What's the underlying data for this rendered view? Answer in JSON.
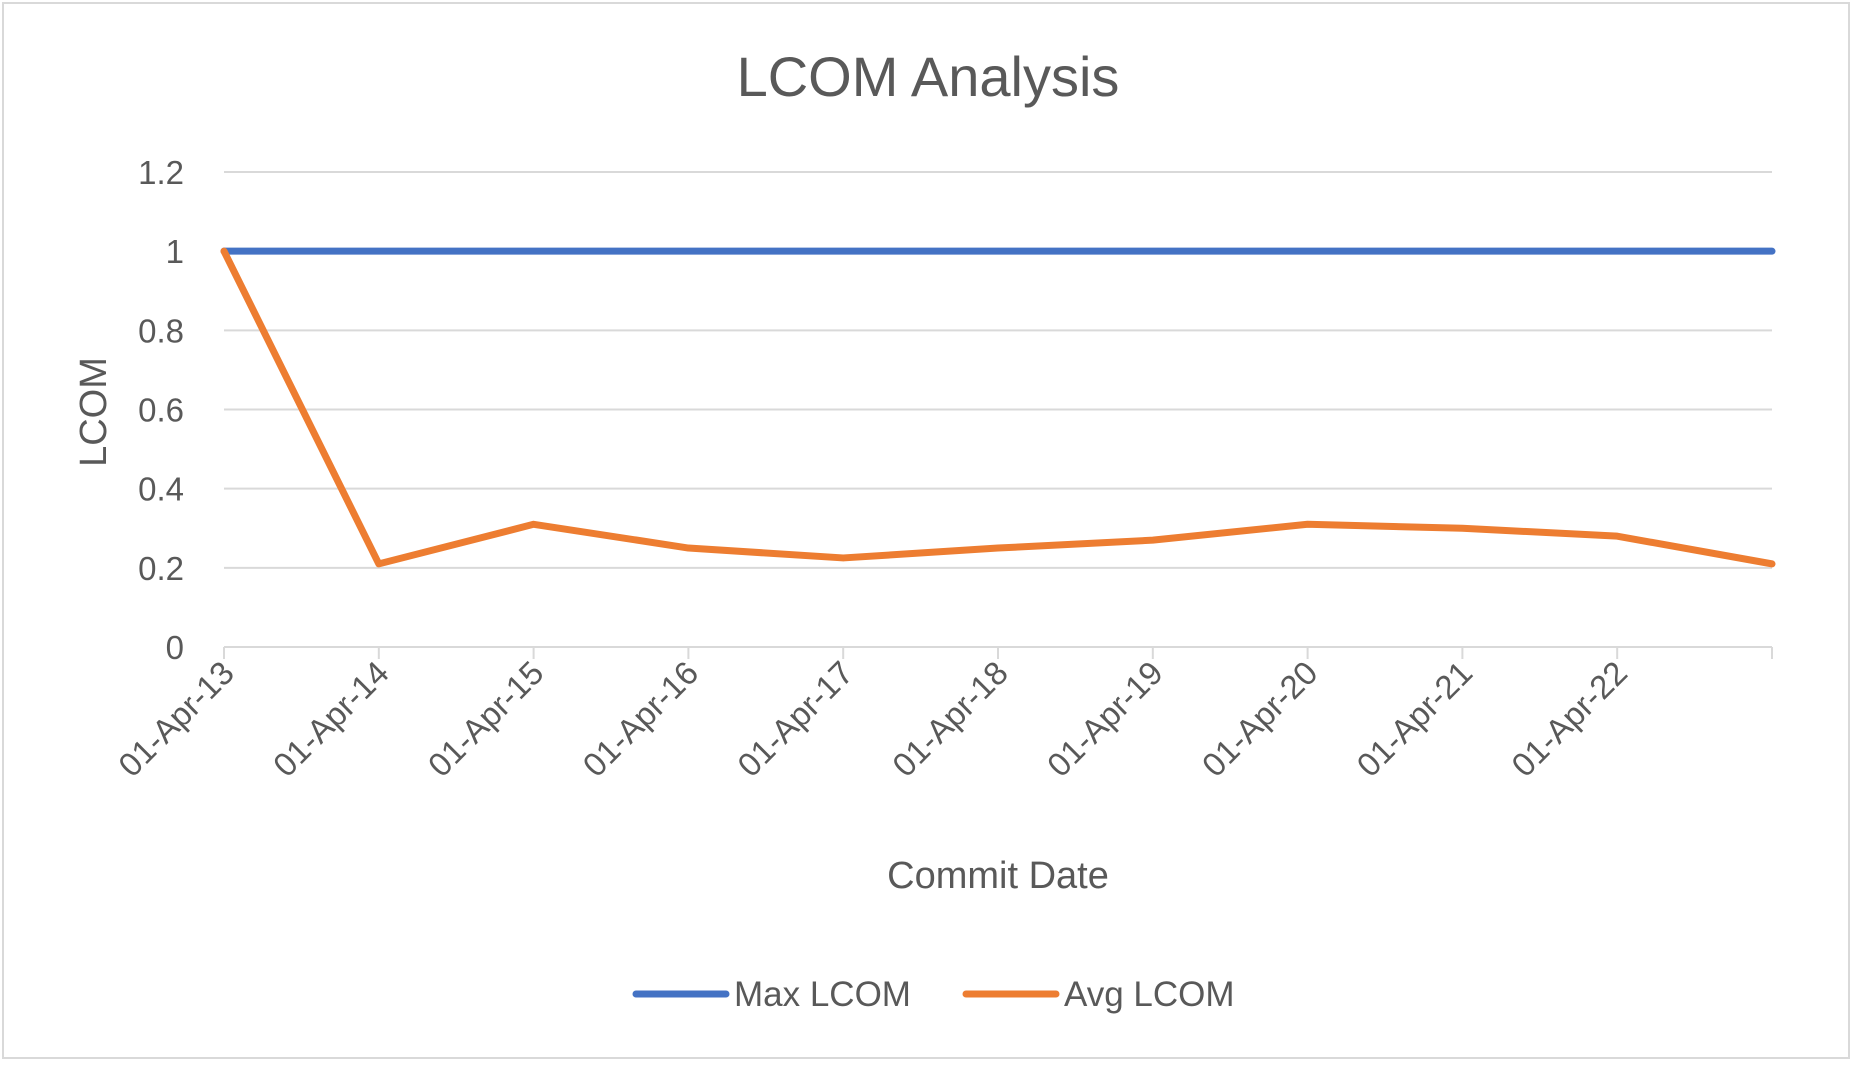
{
  "chart_data": {
    "type": "line",
    "title": "LCOM Analysis",
    "xlabel": "Commit Date",
    "ylabel": "LCOM",
    "categories": [
      "01-Apr-13",
      "01-Apr-14",
      "01-Apr-15",
      "01-Apr-16",
      "01-Apr-17",
      "01-Apr-18",
      "01-Apr-19",
      "01-Apr-20",
      "01-Apr-21",
      "01-Apr-22",
      ""
    ],
    "ylim": [
      0,
      1.2
    ],
    "yticks": [
      "0",
      "0.2",
      "0.4",
      "0.6",
      "0.8",
      "1",
      "1.2"
    ],
    "grid": true,
    "legend_position": "bottom",
    "series": [
      {
        "name": "Max LCOM",
        "color": "#4472c4",
        "values": [
          1,
          1,
          1,
          1,
          1,
          1,
          1,
          1,
          1,
          1,
          1
        ]
      },
      {
        "name": "Avg LCOM",
        "color": "#ed7d31",
        "values": [
          1,
          0.21,
          0.31,
          0.25,
          0.225,
          0.25,
          0.27,
          0.31,
          0.3,
          0.28,
          0.21
        ]
      }
    ]
  }
}
